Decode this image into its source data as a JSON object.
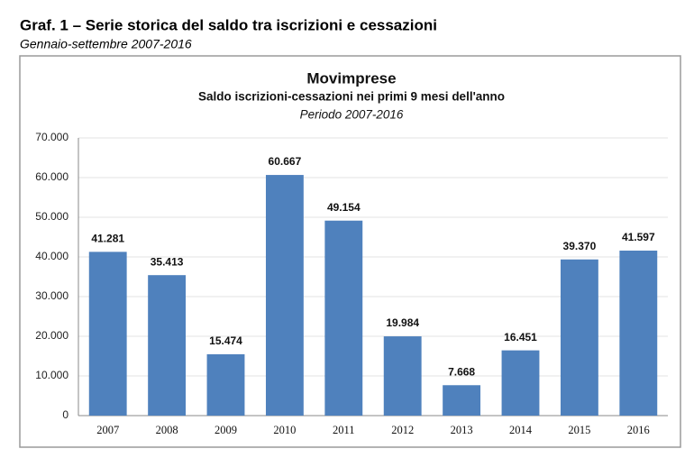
{
  "header": {
    "title": "Graf. 1 – Serie storica del saldo tra iscrizioni e cessazioni",
    "subtitle": "Gennaio-settembre 2007-2016"
  },
  "chart_data": {
    "type": "bar",
    "title": "Movimprese",
    "subtitle": "Saldo iscrizioni-cessazioni nei primi 9 mesi dell'anno",
    "period": "Periodo 2007-2016",
    "categories": [
      "2007",
      "2008",
      "2009",
      "2010",
      "2011",
      "2012",
      "2013",
      "2014",
      "2015",
      "2016"
    ],
    "values": [
      41281,
      35413,
      15474,
      60667,
      49154,
      19984,
      7668,
      16451,
      39370,
      41597
    ],
    "value_labels": [
      "41.281",
      "35.413",
      "15.474",
      "60.667",
      "49.154",
      "19.984",
      "7.668",
      "16.451",
      "39.370",
      "41.597"
    ],
    "color": "#4f81bd",
    "ylim": [
      0,
      70000
    ],
    "yticks": [
      0,
      {
        "value": 10000,
        "label": "10.000"
      },
      {
        "value": 20000,
        "label": "20.000"
      },
      {
        "value": 30000,
        "label": "30.000"
      },
      {
        "value": 40000,
        "label": "40.000"
      },
      {
        "value": 50000,
        "label": "50.000"
      },
      {
        "value": 60000,
        "label": "60.000"
      },
      {
        "value": 70000,
        "label": "70.000"
      }
    ],
    "grid": true
  }
}
